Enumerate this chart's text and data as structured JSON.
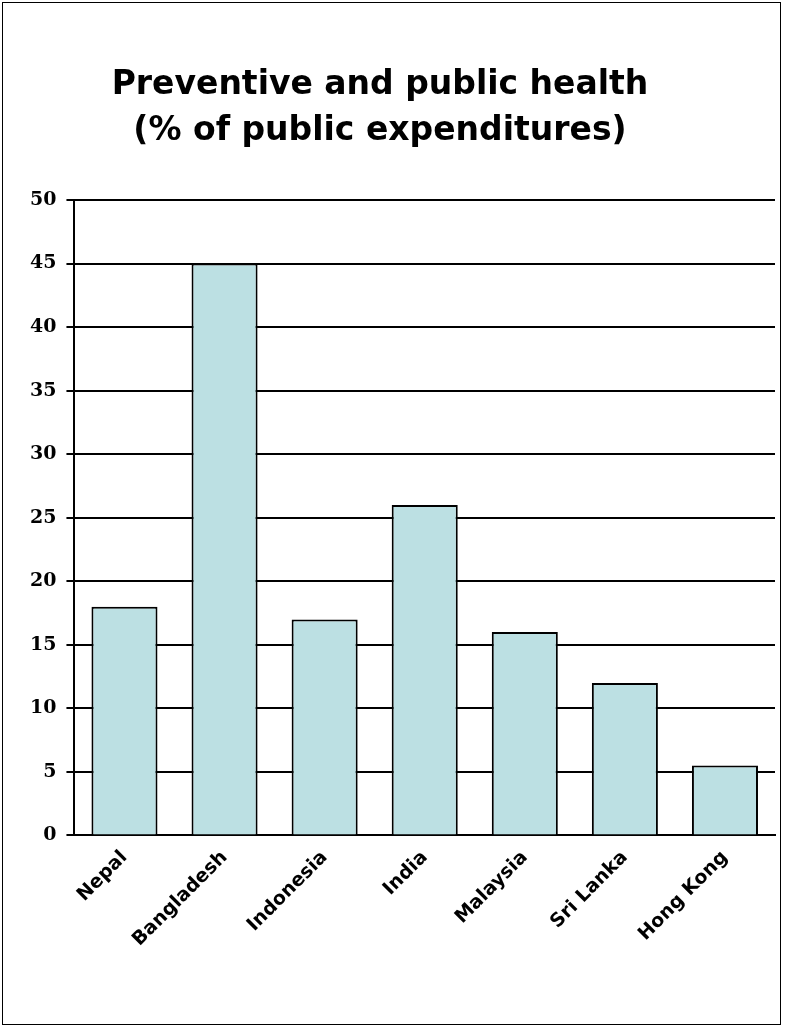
{
  "chart_data": {
    "type": "bar",
    "title": "Preventive and public health (% of public expenditures)",
    "categories": [
      "Nepal",
      "Bangladesh",
      "Indonesia",
      "India",
      "Malaysia",
      "Sri Lanka",
      "Hong Kong"
    ],
    "values": [
      18,
      45,
      17,
      26,
      16,
      12,
      5.5
    ],
    "color": "#bce0e3",
    "ylim": [
      0,
      50
    ],
    "yticks": [
      0,
      5,
      10,
      15,
      20,
      25,
      30,
      35,
      40,
      45,
      50
    ],
    "grid": "y",
    "legend": false
  }
}
